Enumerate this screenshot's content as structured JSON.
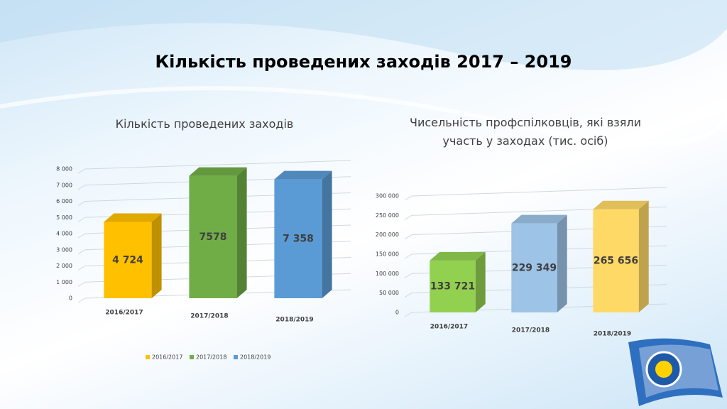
{
  "title": "Кількість проведених заходів 2017 – 2019",
  "chart_data": [
    {
      "type": "bar3d",
      "title": "Кількість проведених заходів",
      "categories": [
        "2016/2017",
        "2017/2018",
        "2018/2019"
      ],
      "values": [
        4724,
        7578,
        7358
      ],
      "value_labels": [
        "4 724",
        "7578",
        "7 358"
      ],
      "colors": [
        "#ffc000",
        "#70ad47",
        "#5b9bd5"
      ],
      "ylim": [
        0,
        8000
      ],
      "yticks": [
        0,
        {
          "value": 1000,
          "label": "1 000"
        },
        {
          "value": 2000,
          "label": "2 000"
        },
        {
          "value": 3000,
          "label": "3 000"
        },
        {
          "value": 4000,
          "label": "4 000"
        },
        {
          "value": 5000,
          "label": "5 000"
        },
        {
          "value": 6000,
          "label": "6 000"
        },
        {
          "value": 7000,
          "label": "7 000"
        },
        {
          "value": 8000,
          "label": "8 000"
        }
      ],
      "grid": true,
      "legend": "bottom"
    },
    {
      "type": "bar3d",
      "title": "Чисельність профспілковців, які взяли участь у заходах (тис. осіб)",
      "categories": [
        "2016/2017",
        "2017/2018",
        "2018/2019"
      ],
      "values": [
        133721,
        229349,
        265656
      ],
      "value_labels": [
        "133 721",
        "229 349",
        "265 656"
      ],
      "colors": [
        "#92d050",
        "#9dc3e6",
        "#ffd966"
      ],
      "ylim": [
        0,
        300000
      ],
      "yticks": [
        0,
        {
          "value": 50000,
          "label": "50 000"
        },
        {
          "value": 100000,
          "label": "100 000"
        },
        {
          "value": 150000,
          "label": "150 000"
        },
        {
          "value": 200000,
          "label": "200 000"
        },
        {
          "value": 250000,
          "label": "250 000"
        },
        {
          "value": 300000,
          "label": "300 000"
        }
      ],
      "grid": true
    }
  ]
}
